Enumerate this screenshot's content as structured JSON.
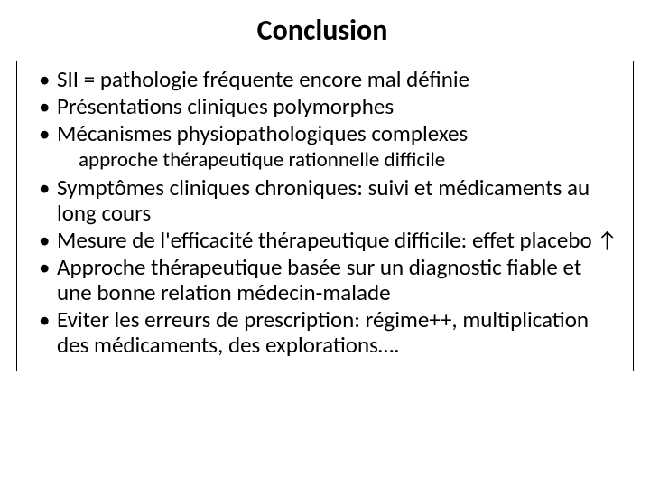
{
  "title": "Conclusion",
  "title_bg_color": "#ff0000",
  "title_text_bg": "#ffffff",
  "title_fontsize": 32,
  "body_fontsize": 25,
  "sub_fontsize": 23,
  "bullets_top": [
    "SII = pathologie fréquente encore mal définie",
    "Présentations cliniques polymorphes",
    "Mécanismes physiopathologiques complexes"
  ],
  "sub_indent": "approche thérapeutique rationnelle difficile",
  "bullets_bottom": [
    "Symptômes cliniques chroniques: suivi et médicaments au long cours",
    "Mesure de l'efficacité thérapeutique difficile: effet placebo ↑",
    "Approche thérapeutique basée sur un diagnostic fiable et une bonne relation médecin-malade",
    "Eviter les erreurs de prescription: régime++, multiplication des médicaments, des explorations…."
  ]
}
